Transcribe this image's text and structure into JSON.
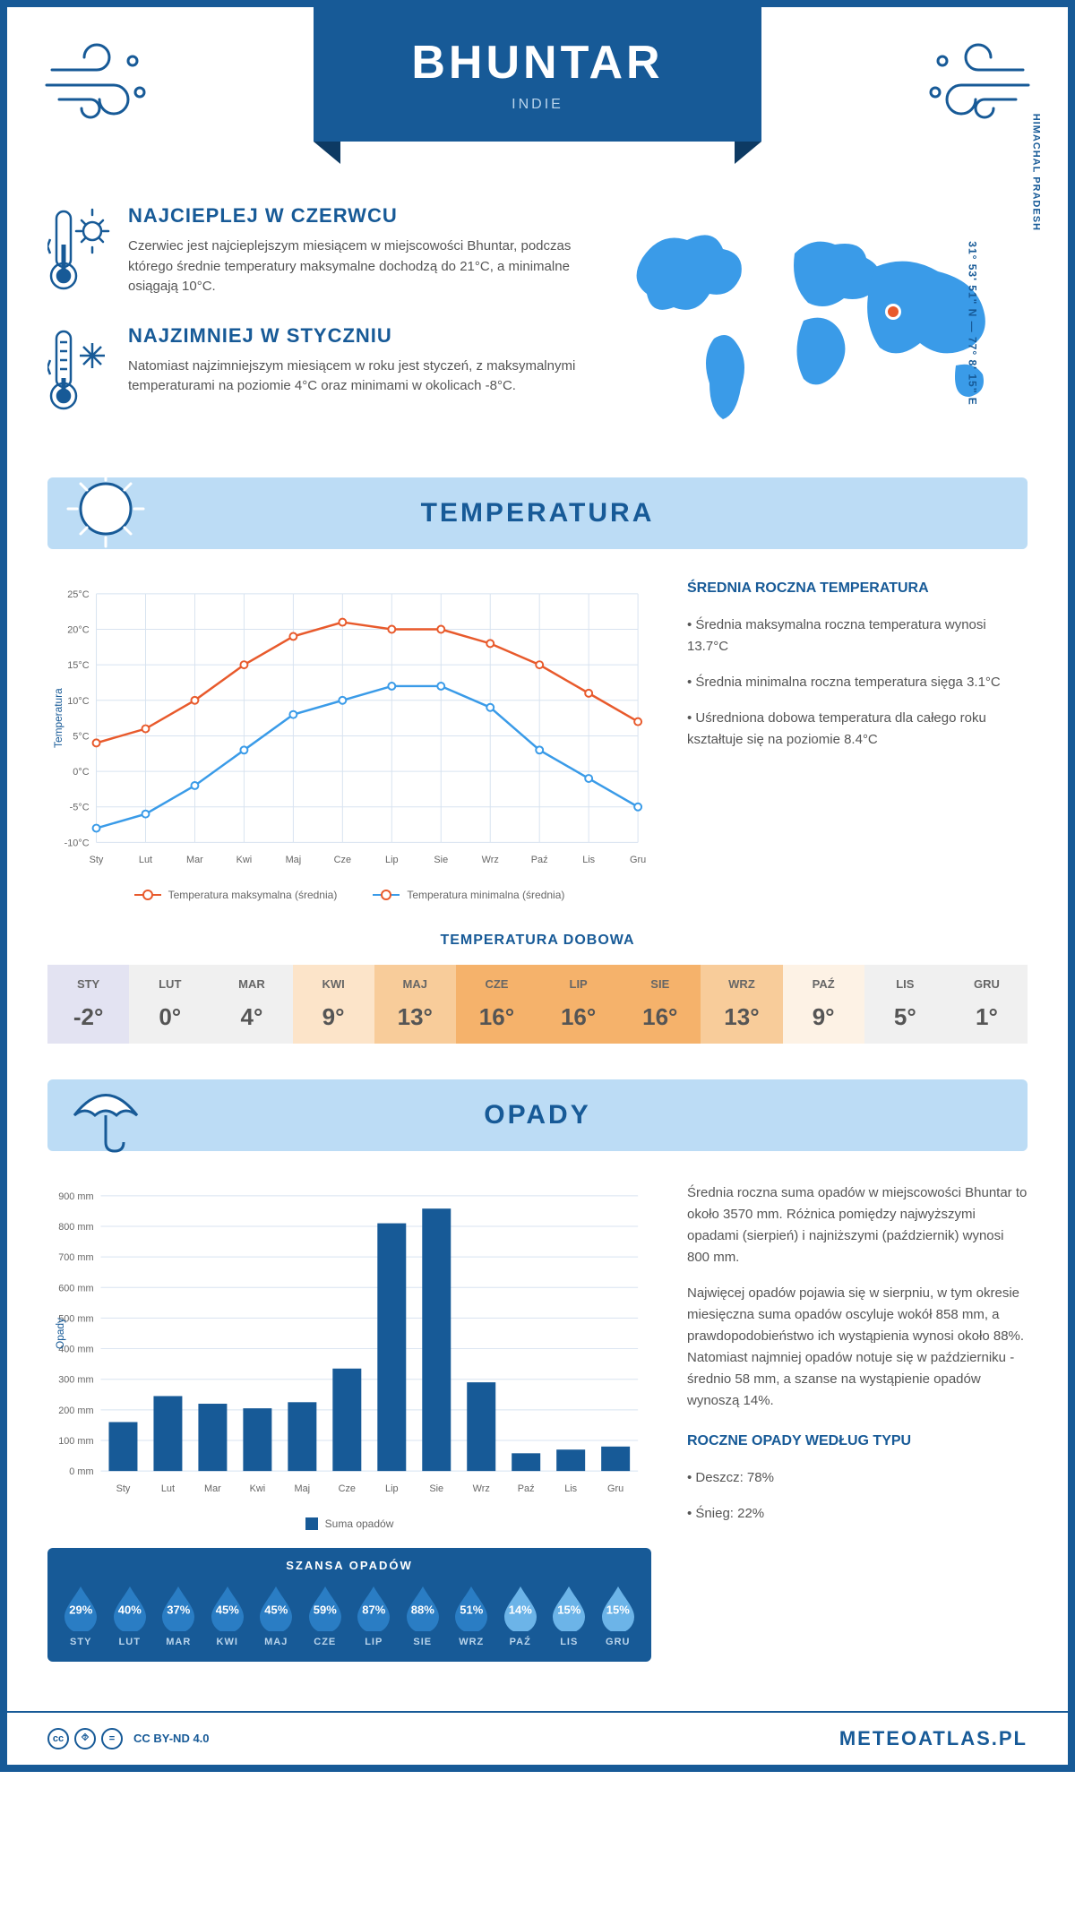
{
  "header": {
    "city": "BHUNTAR",
    "country": "INDIE"
  },
  "coords": "31° 53' 51\" N — 77° 8' 15\" E",
  "region": "HIMACHAL PRADESH",
  "facts": {
    "hot": {
      "title": "NAJCIEPLEJ W CZERWCU",
      "body": "Czerwiec jest najcieplejszym miesiącem w miejscowości Bhuntar, podczas którego średnie temperatury maksymalne dochodzą do 21°C, a minimalne osiągają 10°C."
    },
    "cold": {
      "title": "NAJZIMNIEJ W STYCZNIU",
      "body": "Natomiast najzimniejszym miesiącem w roku jest styczeń, z maksymalnymi temperaturami na poziomie 4°C oraz minimami w okolicach -8°C."
    }
  },
  "sections": {
    "temp_title": "TEMPERATURA",
    "rain_title": "OPADY"
  },
  "temp_chart": {
    "months": [
      "Sty",
      "Lut",
      "Mar",
      "Kwi",
      "Maj",
      "Cze",
      "Lip",
      "Sie",
      "Wrz",
      "Paź",
      "Lis",
      "Gru"
    ],
    "max_series": [
      4,
      6,
      10,
      15,
      19,
      21,
      20,
      20,
      18,
      15,
      11,
      7
    ],
    "min_series": [
      -8,
      -6,
      -2,
      3,
      8,
      10,
      12,
      12,
      9,
      3,
      -1,
      -5
    ],
    "max_color": "#e85a2c",
    "min_color": "#3a9be8",
    "ylim": [
      -10,
      25
    ],
    "ytick_step": 5,
    "ylabel": "Temperatura",
    "legend_max": "Temperatura maksymalna (średnia)",
    "legend_min": "Temperatura minimalna (średnia)",
    "grid_color": "#d8e3f0",
    "bg_color": "#ffffff"
  },
  "temp_facts": {
    "title": "ŚREDNIA ROCZNA TEMPERATURA",
    "bullets": [
      "Średnia maksymalna roczna temperatura wynosi 13.7°C",
      "Średnia minimalna roczna temperatura sięga 3.1°C",
      "Uśredniona dobowa temperatura dla całego roku kształtuje się na poziomie 8.4°C"
    ]
  },
  "daily_temp": {
    "title": "TEMPERATURA DOBOWA",
    "months": [
      "STY",
      "LUT",
      "MAR",
      "KWI",
      "MAJ",
      "CZE",
      "LIP",
      "SIE",
      "WRZ",
      "PAŹ",
      "LIS",
      "GRU"
    ],
    "values": [
      "-2°",
      "0°",
      "4°",
      "9°",
      "13°",
      "16°",
      "16°",
      "16°",
      "13°",
      "9°",
      "5°",
      "1°"
    ],
    "colors": [
      "#e3e3f2",
      "#f0f0f0",
      "#f0f0f0",
      "#fce4c9",
      "#f8cc9a",
      "#f5b26b",
      "#f5b26b",
      "#f5b26b",
      "#f8cc9a",
      "#fdf2e5",
      "#f0f0f0",
      "#f0f0f0"
    ]
  },
  "rain_chart": {
    "months": [
      "Sty",
      "Lut",
      "Mar",
      "Kwi",
      "Maj",
      "Cze",
      "Lip",
      "Sie",
      "Wrz",
      "Paź",
      "Lis",
      "Gru"
    ],
    "values": [
      160,
      245,
      220,
      205,
      225,
      335,
      810,
      858,
      290,
      58,
      70,
      80
    ],
    "ylim": [
      0,
      900
    ],
    "ytick_step": 100,
    "ylabel": "Opady",
    "bar_color": "#175a97",
    "legend": "Suma opadów",
    "grid_color": "#d8e3f0"
  },
  "rain_text": {
    "p1": "Średnia roczna suma opadów w miejscowości Bhuntar to około 3570 mm. Różnica pomiędzy najwyższymi opadami (sierpień) i najniższymi (październik) wynosi 800 mm.",
    "p2": "Najwięcej opadów pojawia się w sierpniu, w tym okresie miesięczna suma opadów oscyluje wokół 858 mm, a prawdopodobieństwo ich wystąpienia wynosi około 88%. Natomiast najmniej opadów notuje się w październiku - średnio 58 mm, a szanse na wystąpienie opadów wynoszą 14%.",
    "type_title": "ROCZNE OPADY WEDŁUG TYPU",
    "type_bullets": [
      "Deszcz: 78%",
      "Śnieg: 22%"
    ]
  },
  "rain_chance": {
    "title": "SZANSA OPADÓW",
    "months": [
      "STY",
      "LUT",
      "MAR",
      "KWI",
      "MAJ",
      "CZE",
      "LIP",
      "SIE",
      "WRZ",
      "PAŹ",
      "LIS",
      "GRU"
    ],
    "pct": [
      "29%",
      "40%",
      "37%",
      "45%",
      "45%",
      "59%",
      "87%",
      "88%",
      "51%",
      "14%",
      "15%",
      "15%"
    ],
    "drop_colors": [
      "#2a7dc4",
      "#2a7dc4",
      "#2a7dc4",
      "#2a7dc4",
      "#2a7dc4",
      "#2a7dc4",
      "#2a7dc4",
      "#2a7dc4",
      "#2a7dc4",
      "#6cb4e8",
      "#6cb4e8",
      "#6cb4e8"
    ]
  },
  "footer": {
    "license": "CC BY-ND 4.0",
    "brand": "METEOATLAS.PL"
  }
}
